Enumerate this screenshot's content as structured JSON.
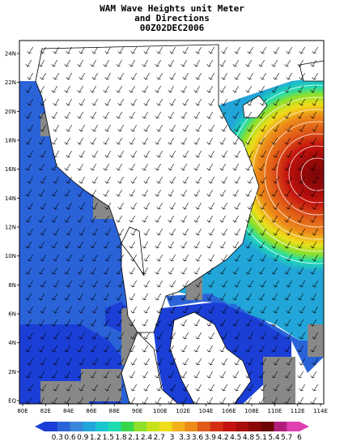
{
  "title": {
    "line1": "WAM Wave Heights unit Meter",
    "line2": "and Directions",
    "line3": "00Z02DEC2006"
  },
  "axes": {
    "x_ticks": [
      "80E",
      "82E",
      "84E",
      "86E",
      "88E",
      "90E",
      "100E",
      "102E",
      "104E",
      "106E",
      "108E",
      "110E",
      "112E",
      "114E"
    ],
    "y_ticks": [
      "EQ",
      "2N",
      "4N",
      "6N",
      "8N",
      "10N",
      "12N",
      "14N",
      "16N",
      "18N",
      "20N",
      "22N",
      "24N"
    ]
  },
  "legend": {
    "labels": [
      "0.3",
      "0.6",
      "0.9",
      "1.2",
      "1.5",
      "1.8",
      "2.1",
      "2.4",
      "2.7",
      "3",
      "3.3",
      "3.6",
      "3.9",
      "4.2",
      "4.5",
      "4.8",
      "5.1",
      "5.4",
      "5.7",
      "6"
    ],
    "colors": [
      "#1b3fd6",
      "#2a63d8",
      "#3a86da",
      "#22a5d8",
      "#19c6d0",
      "#1fdcb0",
      "#38d64a",
      "#8ee02a",
      "#c8e21a",
      "#eedd1a",
      "#f2b11c",
      "#ec8a1a",
      "#e05a18",
      "#d43012",
      "#c4140e",
      "#a80e0c",
      "#8a0808",
      "#6c0404",
      "#b0207a",
      "#e040b0"
    ]
  },
  "colors": {
    "land": "#ffffff",
    "nodata": "#888888",
    "sea_low": "#2a63d8",
    "sea_lowest": "#1b3fd6",
    "coast": "#000000"
  },
  "chart_data": {
    "type": "heatmap",
    "quantity": "significant wave height",
    "unit": "m",
    "lon_range": [
      80,
      114
    ],
    "lat_range": [
      0,
      24
    ],
    "peak_region": {
      "lon": 114,
      "lat": 16,
      "value": 6
    },
    "notes_visible": [
      "arrows indicate wave direction"
    ]
  }
}
